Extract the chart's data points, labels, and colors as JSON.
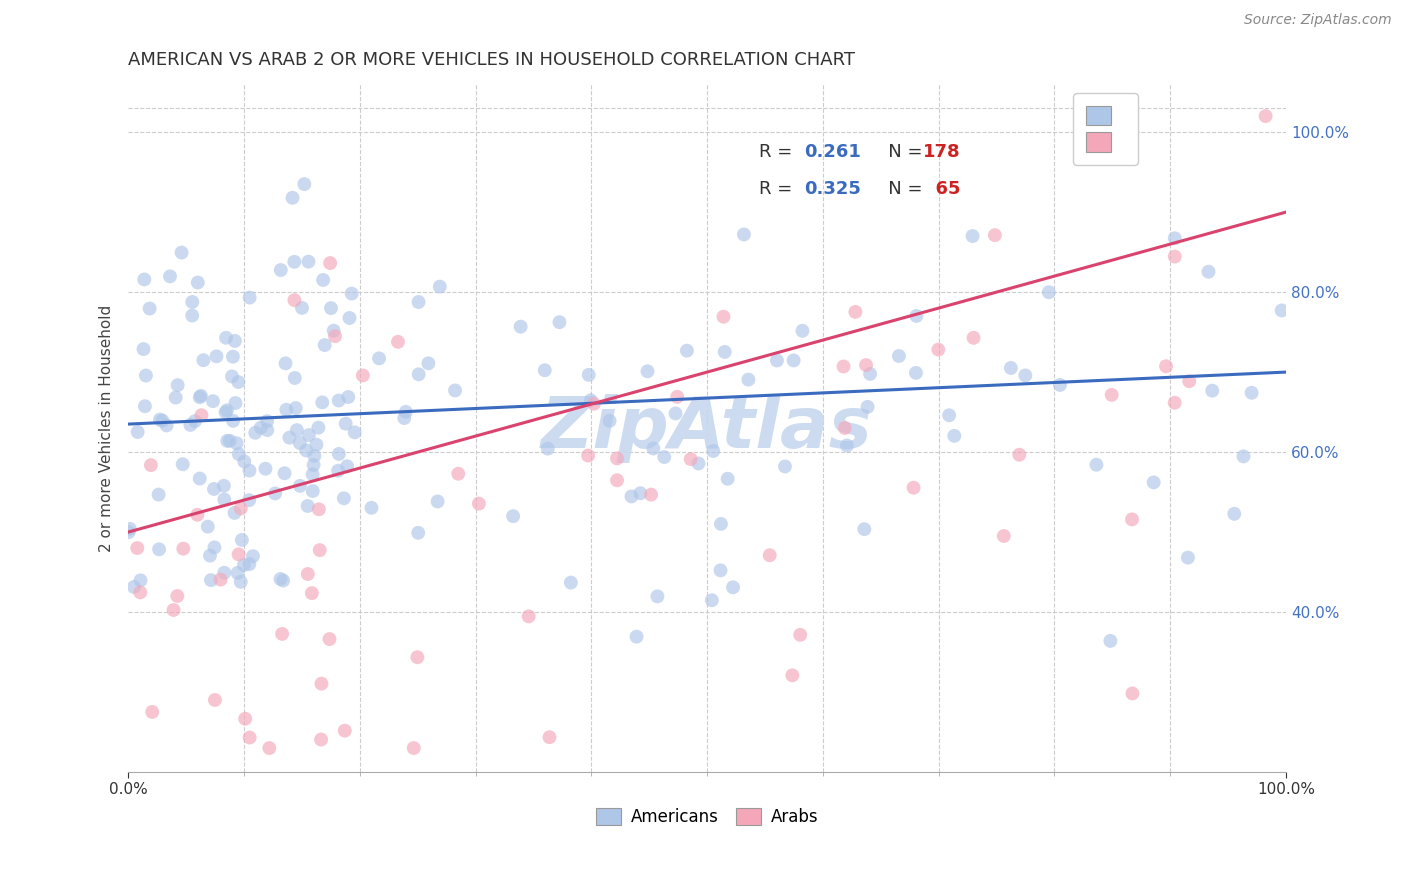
{
  "title": "AMERICAN VS ARAB 2 OR MORE VEHICLES IN HOUSEHOLD CORRELATION CHART",
  "source": "Source: ZipAtlas.com",
  "ylabel": "2 or more Vehicles in Household",
  "xlim": [
    0.0,
    1.0
  ],
  "ylim": [
    0.2,
    1.06
  ],
  "xtick_major": [
    0.0,
    1.0
  ],
  "xtick_minor": [
    0.1,
    0.2,
    0.3,
    0.4,
    0.5,
    0.6,
    0.7,
    0.8,
    0.9
  ],
  "ytick_vals": [
    0.4,
    0.6,
    0.8,
    1.0
  ],
  "blue_color": "#aec6e8",
  "blue_line_color": "#3a6bbf",
  "pink_color": "#f4a7b9",
  "pink_line_color": "#d9436e",
  "R_blue": 0.261,
  "N_blue": 178,
  "R_pink": 0.325,
  "N_pink": 65,
  "legend_R_color": "#3a6bbf",
  "legend_N_color": "#cc2222",
  "background_color": "#ffffff",
  "title_fontsize": 13,
  "axis_label_fontsize": 11,
  "tick_fontsize": 11,
  "source_fontsize": 10,
  "watermark_text": "ZipAtlas",
  "watermark_color": "#c8d8f0",
  "watermark_fontsize": 52,
  "marker_size": 100,
  "marker_alpha": 0.65,
  "grid_color": "#cccccc",
  "grid_style": "--"
}
